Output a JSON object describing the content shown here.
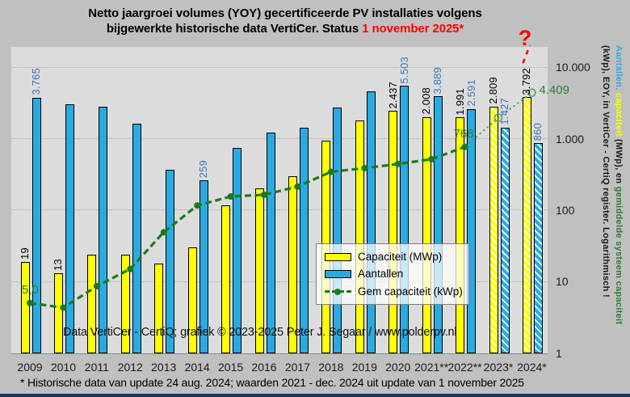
{
  "title": {
    "line1": "Netto jaargroei volumes (YOY) gecertificeerde PV installaties volgens",
    "line2_prefix": "bijgewerkte historische data VertiCer. Status ",
    "line2_highlight": "1 november 2025*"
  },
  "annotations": {
    "question_mark": "?"
  },
  "watermark": "Data VertiCer - CertiQ; grafiek © 2023-2025  Peter J. Segaar / www.polderpv.nl",
  "footnote": "* Historische data van update 24 aug. 2024; waarden 2021 - dec. 2024 uit update van 1 november 2025",
  "legend": {
    "items": [
      {
        "label": "Capaciteit (MWp)",
        "swatch": "yellow-bar"
      },
      {
        "label": "Aantallen",
        "swatch": "blue-bar"
      },
      {
        "label": "Gem capaciteit (kWp)",
        "swatch": "green-dashed-line"
      }
    ]
  },
  "right_axis_title": {
    "line1_segments": [
      {
        "text": "Aantallen.",
        "color": "#2fa8dc"
      },
      {
        "text": " capaciteit",
        "color": "#ffff00"
      },
      {
        "text": " (MWp), en ",
        "color": "#1a1a1a"
      },
      {
        "text": "gemiddelde systeem capaciteit",
        "color": "#2e7d32"
      }
    ],
    "line2_segments": [
      {
        "text": "(kWp), EOY, in VertiCer - CertiQ register. Logarithmisch !",
        "color": "#1a1a1a"
      }
    ]
  },
  "colors": {
    "background": "#c0c0c0",
    "plot_background": "#dcdcdc",
    "gridline": "#c2c2c2",
    "capacity_bar": "#ffff00",
    "aantallen_bar": "#29abe2",
    "aantallen_label": "#3d74b8",
    "green_line": "#1a7a1e",
    "green_line_provisional": "#58a058",
    "green_label": "#2e7d32",
    "red_accent": "#ff0000",
    "bottom_bar": "#17375e",
    "axis_text": "#1a1a1a"
  },
  "chart_data": {
    "type": "bar",
    "subtype": "grouped bars + line overlay, logarithmic y axis",
    "title": "Netto jaargroei volumes (YOY) gecertificeerde PV installaties volgens bijgewerkte historische data VertiCer. Status 1 november 2025*",
    "xlabel": "",
    "ylabel": "Aantallen. capaciteit (MWp), en gemiddelde systeem capaciteit (kWp), EOY, in VertiCer - CertiQ register. Logarithmisch !",
    "ylim": [
      1,
      10000
    ],
    "log_scale": true,
    "grid": true,
    "legend_position": "center-right inside plot",
    "y_ticks": [
      "10.000",
      "1.000",
      "100",
      "10",
      "1"
    ],
    "y_tick_values": [
      10000,
      1000,
      100,
      10,
      1
    ],
    "categories": [
      "2009",
      "2010",
      "2011",
      "2012",
      "2013",
      "2014",
      "2015",
      "2016",
      "2017",
      "2018",
      "2019",
      "2020",
      "2021**",
      "2022**",
      "2023*",
      "2024*"
    ],
    "series": [
      {
        "name": "Capaciteit (MWp)",
        "type": "bar",
        "values": [
          19,
          13,
          24,
          24,
          18,
          30,
          115,
          200,
          300,
          930,
          1800,
          2437,
          2008,
          1991,
          2809,
          3792
        ],
        "labels": [
          "19",
          "13",
          null,
          null,
          null,
          null,
          null,
          null,
          null,
          null,
          null,
          "2.437",
          "2.008",
          "1.991",
          "2.809",
          "3.792"
        ],
        "hatched_from_index": 14
      },
      {
        "name": "Aantallen",
        "type": "bar",
        "values": [
          3765,
          3000,
          2800,
          1600,
          370,
          259,
          740,
          1220,
          1410,
          2700,
          4650,
          5503,
          3889,
          2591,
          1427,
          860
        ],
        "labels": [
          "3.765",
          null,
          null,
          null,
          null,
          "259",
          null,
          null,
          null,
          null,
          null,
          "5.503",
          "3.889",
          "2.591",
          "1.427",
          "860"
        ],
        "hatched_from_index": 14
      },
      {
        "name": "Gem capaciteit (kWp)",
        "type": "line",
        "values": [
          5.0,
          4.3,
          8.6,
          15,
          49,
          116,
          155,
          164,
          213,
          344,
          387,
          443,
          516,
          768,
          1968,
          4409
        ],
        "labels": [
          "5,0",
          null,
          null,
          null,
          null,
          null,
          null,
          null,
          null,
          null,
          null,
          null,
          null,
          "768",
          null,
          "4.409"
        ],
        "provisional_from_index": 13
      }
    ]
  }
}
